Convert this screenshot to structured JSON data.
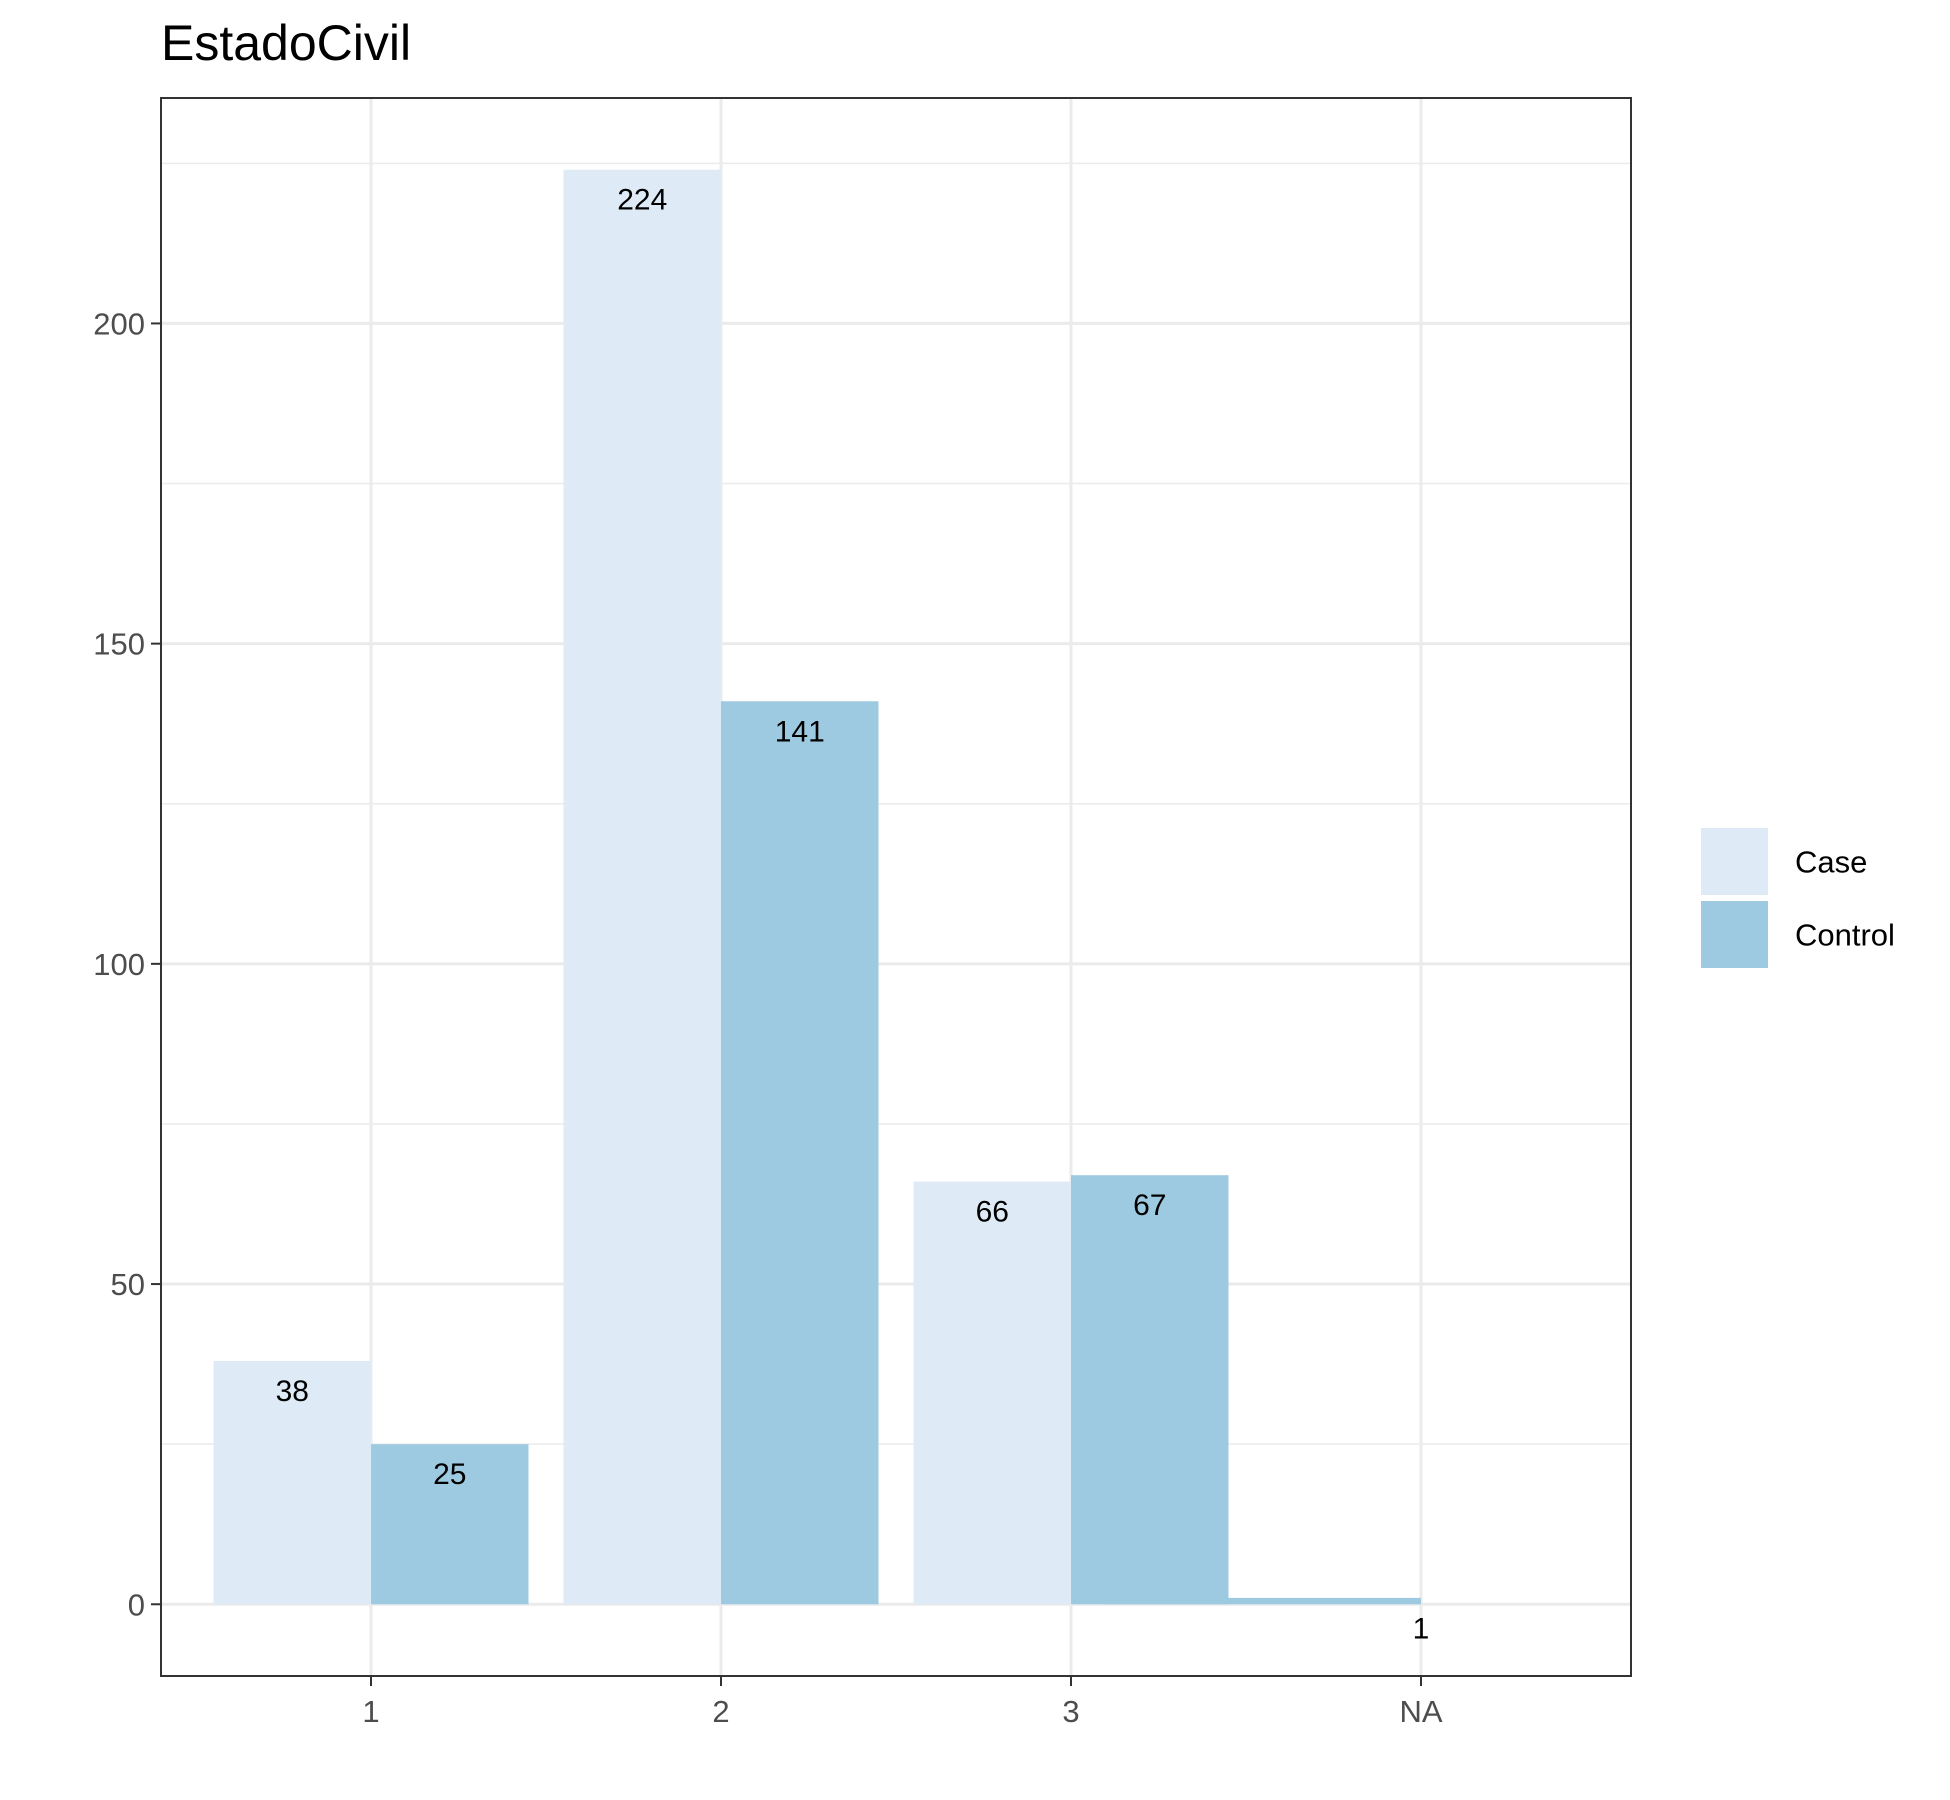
{
  "chart_data": {
    "type": "bar",
    "title": "EstadoCivil",
    "xlabel": "",
    "ylabel": "",
    "categories": [
      "1",
      "2",
      "3",
      "NA"
    ],
    "series": [
      {
        "name": "Case",
        "color": "#DEEBF7",
        "values": [
          38,
          224,
          66,
          null
        ],
        "labels": [
          "38",
          "224",
          "66",
          null
        ]
      },
      {
        "name": "Control",
        "color": "#9ECAE1",
        "values": [
          25,
          141,
          67,
          null
        ],
        "labels": [
          "25",
          "141",
          "67",
          null
        ]
      }
    ],
    "na_bar": {
      "category": "NA",
      "value": 1,
      "label": "1",
      "color": "#9ECAE1"
    },
    "ylim": [
      -11.2,
      235.2
    ],
    "yticks": [
      0,
      50,
      100,
      150,
      200
    ],
    "ytick_labels": [
      "0",
      "50",
      "100",
      "150",
      "200"
    ],
    "grid": true,
    "legend_position": "right"
  }
}
